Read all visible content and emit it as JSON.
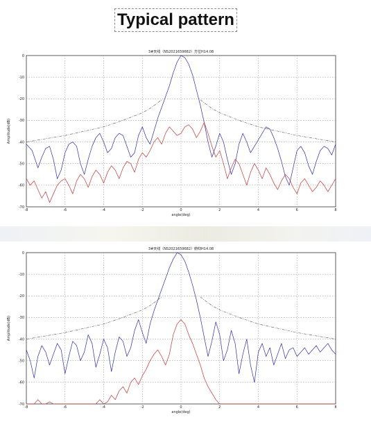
{
  "slide": {
    "title": "Typical pattern"
  },
  "chart_data": [
    {
      "type": "line",
      "title": "3#天线（NS2021659682）方位H14.08",
      "xlabel": "angle(deg)",
      "ylabel": "Amplitude(dB)",
      "xlim": [
        -8,
        8
      ],
      "ylim": [
        -70,
        0
      ],
      "xticks": [
        -8,
        -6,
        -4,
        -2,
        0,
        2,
        4,
        6,
        8
      ],
      "yticks": [
        0,
        -10,
        -20,
        -30,
        -40,
        -50,
        -60,
        -70
      ],
      "xtick_labels": [
        "-8",
        "-6",
        "-4",
        "-2",
        "0",
        "2",
        "4",
        "6",
        "8"
      ],
      "ytick_labels": [
        "0",
        "-10",
        "-20",
        "-30",
        "-40",
        "-50",
        "-60",
        "-70"
      ],
      "grid": true,
      "series": [
        {
          "color": "#2b2bb0",
          "style": "solid",
          "x": [
            -8,
            -7.7,
            -7.4,
            -7.2,
            -7.0,
            -6.8,
            -6.6,
            -6.4,
            -6.2,
            -6.0,
            -5.8,
            -5.6,
            -5.4,
            -5.2,
            -5.0,
            -4.8,
            -4.6,
            -4.4,
            -4.2,
            -4.0,
            -3.8,
            -3.6,
            -3.4,
            -3.2,
            -3.0,
            -2.8,
            -2.6,
            -2.4,
            -2.2,
            -2.0,
            -1.8,
            -1.6,
            -1.4,
            -1.2,
            -1.0,
            -0.8,
            -0.6,
            -0.4,
            -0.2,
            0,
            0.2,
            0.4,
            0.6,
            0.8,
            1.0,
            1.2,
            1.4,
            1.6,
            1.8,
            2.0,
            2.2,
            2.4,
            2.6,
            2.8,
            3.0,
            3.2,
            3.4,
            3.6,
            3.8,
            4.0,
            4.2,
            4.4,
            4.6,
            4.8,
            5.0,
            5.2,
            5.4,
            5.6,
            5.8,
            6.0,
            6.2,
            6.4,
            6.6,
            6.8,
            7.0,
            7.2,
            7.4,
            7.6,
            7.8,
            8.0
          ],
          "y": [
            -41,
            -44,
            -52,
            -47,
            -43,
            -42,
            -48,
            -57,
            -53,
            -45,
            -41,
            -40,
            -42,
            -50,
            -55,
            -48,
            -42,
            -38,
            -36,
            -40,
            -45,
            -43,
            -38,
            -36,
            -37,
            -42,
            -47,
            -45,
            -37,
            -33,
            -38,
            -41,
            -35,
            -29,
            -24,
            -19,
            -14,
            -8,
            -3,
            0,
            -1,
            -4,
            -9,
            -16,
            -23,
            -31,
            -40,
            -47,
            -42,
            -36,
            -40,
            -48,
            -55,
            -50,
            -41,
            -36,
            -40,
            -45,
            -42,
            -39,
            -36,
            -33,
            -34,
            -38,
            -43,
            -49,
            -56,
            -60,
            -52,
            -44,
            -42,
            -45,
            -51,
            -55,
            -49,
            -44,
            -42,
            -43,
            -46,
            -41
          ]
        },
        {
          "color": "#c83232",
          "style": "solid",
          "x": [
            -8,
            -7.8,
            -7.6,
            -7.4,
            -7.2,
            -7.0,
            -6.8,
            -6.6,
            -6.4,
            -6.2,
            -6.0,
            -5.8,
            -5.6,
            -5.4,
            -5.2,
            -5.0,
            -4.8,
            -4.6,
            -4.4,
            -4.2,
            -4.0,
            -3.8,
            -3.6,
            -3.4,
            -3.2,
            -3.0,
            -2.8,
            -2.6,
            -2.4,
            -2.2,
            -2.0,
            -1.8,
            -1.6,
            -1.4,
            -1.2,
            -1.0,
            -0.8,
            -0.6,
            -0.4,
            -0.2,
            0,
            0.2,
            0.4,
            0.6,
            0.8,
            1.0,
            1.2,
            1.4,
            1.6,
            1.8,
            2.0,
            2.2,
            2.4,
            2.6,
            2.8,
            3.0,
            3.2,
            3.4,
            3.6,
            3.8,
            4.0,
            4.2,
            4.4,
            4.6,
            4.8,
            5.0,
            5.2,
            5.4,
            5.6,
            5.8,
            6.0,
            6.2,
            6.4,
            6.6,
            6.8,
            7.0,
            7.2,
            7.4,
            7.6,
            7.8,
            8.0
          ],
          "y": [
            -57,
            -60,
            -58,
            -62,
            -66,
            -63,
            -68,
            -64,
            -60,
            -58,
            -57,
            -60,
            -64,
            -58,
            -55,
            -57,
            -61,
            -56,
            -53,
            -55,
            -59,
            -54,
            -51,
            -53,
            -57,
            -52,
            -49,
            -50,
            -54,
            -48,
            -45,
            -47,
            -44,
            -40,
            -38,
            -41,
            -36,
            -33,
            -35,
            -37,
            -36,
            -33,
            -32,
            -34,
            -38,
            -35,
            -31,
            -36,
            -42,
            -47,
            -44,
            -50,
            -57,
            -52,
            -48,
            -50,
            -55,
            -60,
            -54,
            -50,
            -53,
            -57,
            -52,
            -55,
            -59,
            -62,
            -58,
            -55,
            -57,
            -61,
            -64,
            -59,
            -57,
            -60,
            -63,
            -61,
            -58,
            -60,
            -63,
            -60,
            -57
          ]
        },
        {
          "color": "#555555",
          "style": "dashdot",
          "segments": [
            {
              "x": [
                -8,
                -7,
                -6,
                -5,
                -4,
                -3,
                -2,
                -1.6,
                -1.3,
                -1.0
              ],
              "y": [
                -40,
                -38.5,
                -37,
                -35,
                -33,
                -30,
                -26.5,
                -24.5,
                -22.5,
                -20.5
              ]
            },
            {
              "x": [
                1.0,
                1.3,
                1.6,
                2,
                3,
                4,
                5,
                6,
                7,
                8
              ],
              "y": [
                -20.5,
                -22.5,
                -24.5,
                -26.5,
                -30,
                -33,
                -35,
                -37,
                -38.5,
                -40
              ]
            }
          ]
        }
      ]
    },
    {
      "type": "line",
      "title": "3#天线（NS2021659682）俯仰H14.08",
      "xlabel": "angle(deg)",
      "ylabel": "Amplitude(dB)",
      "xlim": [
        -8,
        8
      ],
      "ylim": [
        -70,
        0
      ],
      "xticks": [
        -8,
        -6,
        -4,
        -2,
        0,
        2,
        4,
        6,
        8
      ],
      "yticks": [
        0,
        -10,
        -20,
        -30,
        -40,
        -50,
        -60,
        -70
      ],
      "xtick_labels": [
        "-8",
        "-6",
        "-4",
        "-2",
        "0",
        "2",
        "4",
        "6",
        "8"
      ],
      "ytick_labels": [
        "0",
        "-10",
        "-20",
        "-30",
        "-40",
        "-50",
        "-60",
        "-70"
      ],
      "grid": true,
      "series": [
        {
          "color": "#2b2bb0",
          "style": "solid",
          "x": [
            -8,
            -7.8,
            -7.6,
            -7.4,
            -7.2,
            -7.0,
            -6.8,
            -6.6,
            -6.4,
            -6.2,
            -6.0,
            -5.8,
            -5.6,
            -5.4,
            -5.2,
            -5.0,
            -4.8,
            -4.6,
            -4.4,
            -4.2,
            -4.0,
            -3.8,
            -3.6,
            -3.4,
            -3.2,
            -3.0,
            -2.8,
            -2.6,
            -2.4,
            -2.2,
            -2.0,
            -1.8,
            -1.6,
            -1.4,
            -1.2,
            -1.0,
            -0.8,
            -0.6,
            -0.4,
            -0.2,
            0,
            0.2,
            0.4,
            0.6,
            0.8,
            1.0,
            1.2,
            1.4,
            1.6,
            1.8,
            2.0,
            2.2,
            2.4,
            2.6,
            2.8,
            3.0,
            3.2,
            3.4,
            3.6,
            3.8,
            4.0,
            4.2,
            4.4,
            4.6,
            4.8,
            5.0,
            5.2,
            5.4,
            5.6,
            5.8,
            6.0,
            6.2,
            6.4,
            6.6,
            6.8,
            7.0,
            7.2,
            7.4,
            7.6,
            7.8,
            8.0
          ],
          "y": [
            -45,
            -50,
            -58,
            -48,
            -43,
            -46,
            -52,
            -47,
            -42,
            -45,
            -56,
            -48,
            -41,
            -43,
            -50,
            -46,
            -38,
            -42,
            -53,
            -47,
            -40,
            -44,
            -55,
            -46,
            -39,
            -41,
            -48,
            -44,
            -36,
            -31,
            -37,
            -42,
            -33,
            -27,
            -22,
            -17,
            -12,
            -7,
            -3,
            0,
            -1,
            -4,
            -9,
            -15,
            -22,
            -30,
            -39,
            -48,
            -41,
            -32,
            -38,
            -50,
            -45,
            -36,
            -42,
            -56,
            -47,
            -40,
            -52,
            -60,
            -46,
            -42,
            -48,
            -44,
            -52,
            -47,
            -42,
            -49,
            -45,
            -44,
            -48,
            -46,
            -44,
            -47,
            -45,
            -43,
            -46,
            -44,
            -42,
            -45,
            -47
          ]
        },
        {
          "color": "#c83232",
          "style": "solid",
          "x": [
            -8,
            -7.8,
            -7.6,
            -7.4,
            -7.2,
            -7.0,
            -6.8,
            -6.6,
            -6.4,
            -6.2,
            -6.0,
            -5.8,
            -5.6,
            -5.4,
            -5.2,
            -5.0,
            -4.8,
            -4.6,
            -4.4,
            -4.2,
            -4.0,
            -3.8,
            -3.6,
            -3.4,
            -3.2,
            -3.0,
            -2.8,
            -2.6,
            -2.4,
            -2.2,
            -2.0,
            -1.8,
            -1.6,
            -1.4,
            -1.2,
            -1.0,
            -0.8,
            -0.6,
            -0.4,
            -0.2,
            0,
            0.2,
            0.4,
            0.6,
            0.8,
            1.0,
            1.2,
            1.4,
            1.6,
            1.8,
            2.0,
            2.2,
            2.4,
            2.6,
            2.8,
            3.0,
            3.2,
            3.4,
            3.6,
            3.8,
            4.0,
            4.2,
            4.4,
            4.6,
            4.8,
            5.0,
            5.2,
            5.4,
            5.6,
            5.8,
            6.0,
            6.2,
            6.4,
            6.6,
            6.8,
            7.0,
            7.2,
            7.4,
            7.6,
            7.8,
            8.0
          ],
          "y": [
            -70,
            -70,
            -70,
            -68,
            -70,
            -70,
            -69,
            -70,
            -70,
            -70,
            -70,
            -70,
            -70,
            -70,
            -70,
            -70,
            -70,
            -70,
            -70,
            -68,
            -70,
            -69,
            -66,
            -68,
            -64,
            -62,
            -65,
            -60,
            -58,
            -61,
            -57,
            -54,
            -50,
            -47,
            -45,
            -48,
            -52,
            -47,
            -38,
            -33,
            -31,
            -33,
            -38,
            -42,
            -47,
            -52,
            -58,
            -62,
            -65,
            -68,
            -70,
            -70,
            -70,
            -70,
            -70,
            -70,
            -70,
            -70,
            -70,
            -70,
            -70,
            -70,
            -70,
            -70,
            -70,
            -70,
            -70,
            -70,
            -70,
            -70,
            -70,
            -70,
            -70,
            -70,
            -70,
            -70,
            -70,
            -70,
            -70,
            -70,
            -70
          ]
        },
        {
          "color": "#555555",
          "style": "dashdot",
          "segments": [
            {
              "x": [
                -8,
                -7,
                -6,
                -5,
                -4,
                -3,
                -2,
                -1.6,
                -1.3,
                -1.0
              ],
              "y": [
                -40,
                -38.5,
                -37,
                -35,
                -33,
                -30,
                -26.5,
                -24.5,
                -22.5,
                -20.5
              ]
            },
            {
              "x": [
                1.0,
                1.3,
                1.6,
                2,
                3,
                4,
                5,
                6,
                7,
                8
              ],
              "y": [
                -20.5,
                -22.5,
                -24.5,
                -26.5,
                -30,
                -33,
                -35,
                -37,
                -38.5,
                -40
              ]
            }
          ]
        }
      ]
    }
  ]
}
